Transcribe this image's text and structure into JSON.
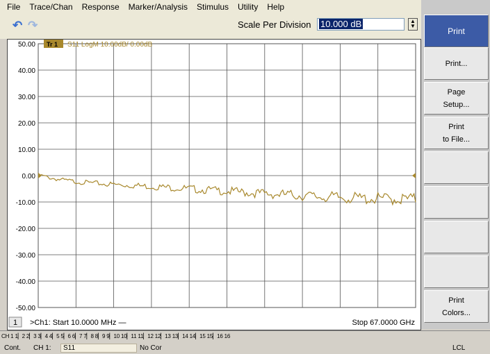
{
  "menu": [
    "File",
    "Trace/Chan",
    "Response",
    "Marker/Analysis",
    "Stimulus",
    "Utility",
    "Help"
  ],
  "toolbar": {
    "undo_icon": "undo-arrow-icon",
    "redo_icon": "redo-arrow-icon",
    "scale_label": "Scale Per Division",
    "scale_value": "10.000 dB",
    "spinner_up": "▲",
    "spinner_down": "▼"
  },
  "trace": {
    "badge": "Tr 1",
    "title": "S11 LogM 10.00dB/ 0.00dB",
    "color": "#a8882c"
  },
  "footer": {
    "channel_num": "1",
    "start": ">Ch1:  Start  10.0000 MHz —",
    "stop": "Stop  67.0000 GHz"
  },
  "softkeys": {
    "title": "Print",
    "keys": [
      "Print...",
      "Page\nSetup...",
      "Print\nto File...",
      "",
      "",
      "",
      "",
      "Print\nColors..."
    ]
  },
  "status": {
    "channels": "CH 1 1▏2 2▏3 3▏4 4▏5 5▏6 6▏7 7▏8 8▏9 9▏10 10▏11 11▏12 12▏13 13▏14 14▏15 15▏16 16",
    "cont": "Cont.",
    "ch": "CH 1:",
    "param": "S11",
    "cor": "No Cor",
    "lcl": "LCL"
  },
  "chart_data": {
    "type": "line",
    "title": "S11 LogM 10.00dB/ 0.00dB",
    "xlabel": "",
    "ylabel": "",
    "x_start": "10.0000 MHz",
    "x_stop": "67.0000 GHz",
    "x_divisions": 10,
    "ylim": [
      -50,
      50
    ],
    "yticks": [
      50,
      40,
      30,
      20,
      10,
      0,
      -10,
      -20,
      -30,
      -40,
      -50
    ],
    "ytick_labels": [
      "50.00",
      "40.00",
      "30.00",
      "20.00",
      "10.00",
      "0.00",
      "-10.00",
      "-20.00",
      "-30.00",
      "-40.00",
      "-50.00"
    ],
    "reference_level": 0,
    "grid": true,
    "series": [
      {
        "x_fraction": [
          0,
          0.03,
          0.06,
          0.1,
          0.14,
          0.2,
          0.26,
          0.32,
          0.38,
          0.44,
          0.5,
          0.56,
          0.62,
          0.68,
          0.74,
          0.8,
          0.86,
          0.92,
          1.0
        ],
        "values": [
          0.3,
          -0.8,
          -1.6,
          -2.3,
          -2.8,
          -3.4,
          -3.8,
          -4.3,
          -4.8,
          -5.4,
          -5.9,
          -6.5,
          -7.0,
          -7.4,
          -8.0,
          -8.3,
          -8.7,
          -8.8,
          -9.0
        ]
      }
    ]
  }
}
